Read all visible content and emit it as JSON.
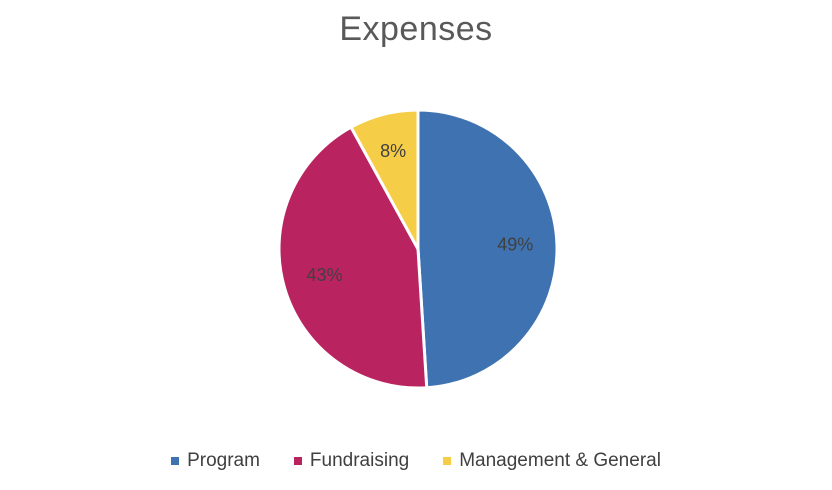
{
  "chart_data": {
    "type": "pie",
    "title": "Expenses",
    "categories": [
      "Program",
      "Fundraising",
      "Management & General"
    ],
    "values": [
      49,
      43,
      8
    ],
    "labels": [
      "49%",
      "43%",
      "8%"
    ],
    "colors": [
      "#3f72b0",
      "#b92360",
      "#f6cd46"
    ],
    "start_angle_deg": 0,
    "direction": "clockwise",
    "legend": "bottom"
  }
}
